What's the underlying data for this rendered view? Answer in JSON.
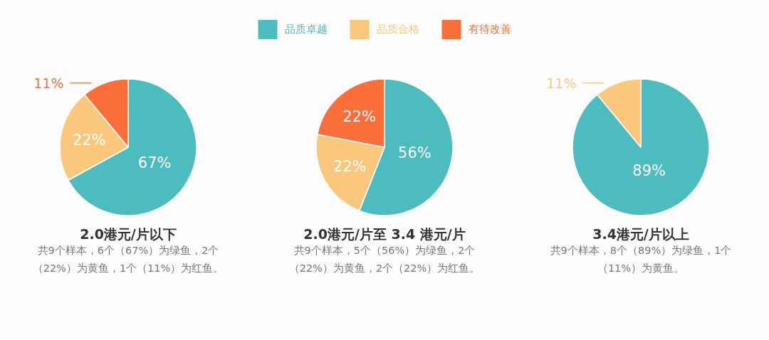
{
  "chart_data": [
    {
      "type": "pie",
      "title": "2.0港元/片以下",
      "categories": [
        null,
        null,
        null
      ],
      "values": [
        67,
        22,
        11
      ],
      "colors": [
        "#4dbcbf",
        "#f9c87c",
        "#fa6e3a"
      ],
      "value_labels": [
        "67%",
        "22%",
        "11%"
      ],
      "annotations": [
        "共9个样本，6个（67%）为绿鱼，2个（22%）为黄鱼，1个（11%）为红鱼。"
      ]
    },
    {
      "type": "pie",
      "title": "2.0港元/片至 3.4 港元/片",
      "categories": [
        "品质卓越",
        "品质合格",
        "有待改善"
      ],
      "values": [
        56,
        22,
        22
      ],
      "colors": [
        "#4dbcbf",
        "#f9c87c",
        "#fa6e3a"
      ],
      "value_labels": [
        "56%",
        "22%",
        "22%"
      ],
      "annotations": [
        "共9个样本，5个（56%）为绿鱼，2个（22%）为黄鱼，2个（22%）为红鱼。"
      ],
      "legend": "top"
    },
    {
      "type": "pie",
      "title": "3.4港元/片以上",
      "categories": [
        null,
        null
      ],
      "values": [
        89,
        11
      ],
      "colors": [
        "#4dbcbf",
        "#f9c87c"
      ],
      "value_labels": [
        "89%",
        "11%"
      ],
      "annotations": [
        "共9个样本，8个（89%）为绿鱼，1个（11%）为黄鱼。"
      ]
    }
  ]
}
